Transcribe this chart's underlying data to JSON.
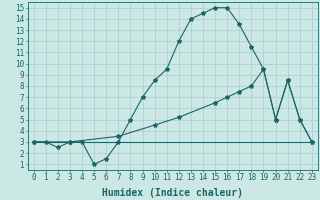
{
  "bg_color": "#cce8e4",
  "grid_color": "#aacccc",
  "line_color": "#1a6666",
  "xlabel": "Humidex (Indice chaleur)",
  "xlim": [
    -0.5,
    23.5
  ],
  "ylim": [
    0.5,
    15.5
  ],
  "xticks": [
    0,
    1,
    2,
    3,
    4,
    5,
    6,
    7,
    8,
    9,
    10,
    11,
    12,
    13,
    14,
    15,
    16,
    17,
    18,
    19,
    20,
    21,
    22,
    23
  ],
  "yticks": [
    1,
    2,
    3,
    4,
    5,
    6,
    7,
    8,
    9,
    10,
    11,
    12,
    13,
    14,
    15
  ],
  "curve1_x": [
    0,
    1,
    2,
    3,
    4,
    5,
    6,
    7,
    8,
    9,
    10,
    11,
    12,
    13,
    14,
    15,
    16,
    17,
    18,
    19,
    20,
    21,
    22,
    23
  ],
  "curve1_y": [
    3.0,
    3.0,
    2.5,
    3.0,
    3.0,
    1.0,
    1.5,
    3.0,
    5.0,
    7.0,
    8.5,
    9.5,
    12.0,
    14.0,
    14.5,
    15.0,
    15.0,
    13.5,
    11.5,
    9.5,
    5.0,
    8.5,
    5.0,
    3.0
  ],
  "curve2_x": [
    0,
    3,
    7,
    10,
    12,
    15,
    16,
    17,
    18,
    19,
    20,
    21,
    22,
    23
  ],
  "curve2_y": [
    3.0,
    3.0,
    3.5,
    4.5,
    5.2,
    6.5,
    7.0,
    7.5,
    8.0,
    9.5,
    5.0,
    8.5,
    5.0,
    3.0
  ],
  "curve3_x": [
    0,
    23
  ],
  "curve3_y": [
    3.0,
    3.0
  ],
  "font_size_label": 7,
  "font_size_tick": 5.5
}
